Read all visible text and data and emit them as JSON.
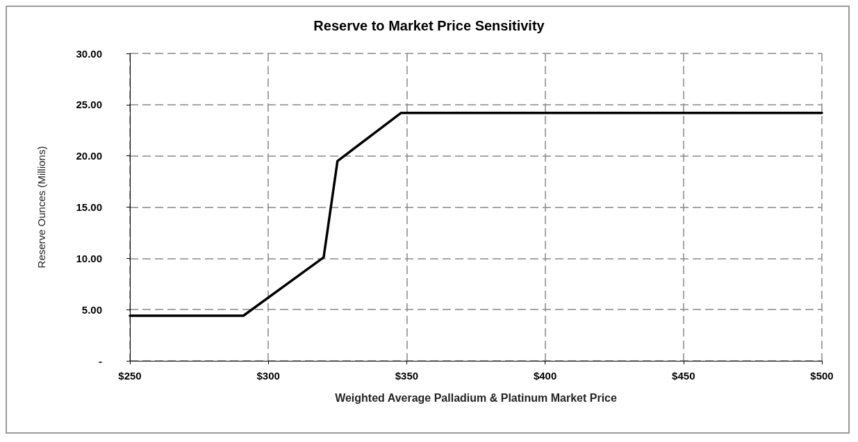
{
  "chart_data": {
    "type": "line",
    "title": "Reserve to Market Price Sensitivity",
    "xlabel": "Weighted Average Palladium & Platinum Market Price",
    "ylabel": "Reserve Ounces (Millions)",
    "x": [
      250,
      291,
      320,
      325,
      348,
      500
    ],
    "series": [
      {
        "color": "#000000",
        "values": [
          4.4,
          4.4,
          10.1,
          19.5,
          24.2,
          24.2
        ]
      }
    ],
    "xlim": [
      250,
      500
    ],
    "xticks": [
      {
        "value": 250,
        "label": "$250"
      },
      {
        "value": 300,
        "label": "$300"
      },
      {
        "value": 350,
        "label": "$350"
      },
      {
        "value": 400,
        "label": "$400"
      },
      {
        "value": 450,
        "label": "$450"
      },
      {
        "value": 500,
        "label": "$500"
      }
    ],
    "ylim": [
      0,
      30
    ],
    "yticks": [
      {
        "value": 0,
        "label": "-"
      },
      {
        "value": 5,
        "label": "5.00"
      },
      {
        "value": 10,
        "label": "10.00"
      },
      {
        "value": 15,
        "label": "15.00"
      },
      {
        "value": 20,
        "label": "20.00"
      },
      {
        "value": 25,
        "label": "25.00"
      },
      {
        "value": 30,
        "label": "30.00"
      }
    ],
    "grid": true,
    "marker": "none",
    "line_style": "solid"
  }
}
